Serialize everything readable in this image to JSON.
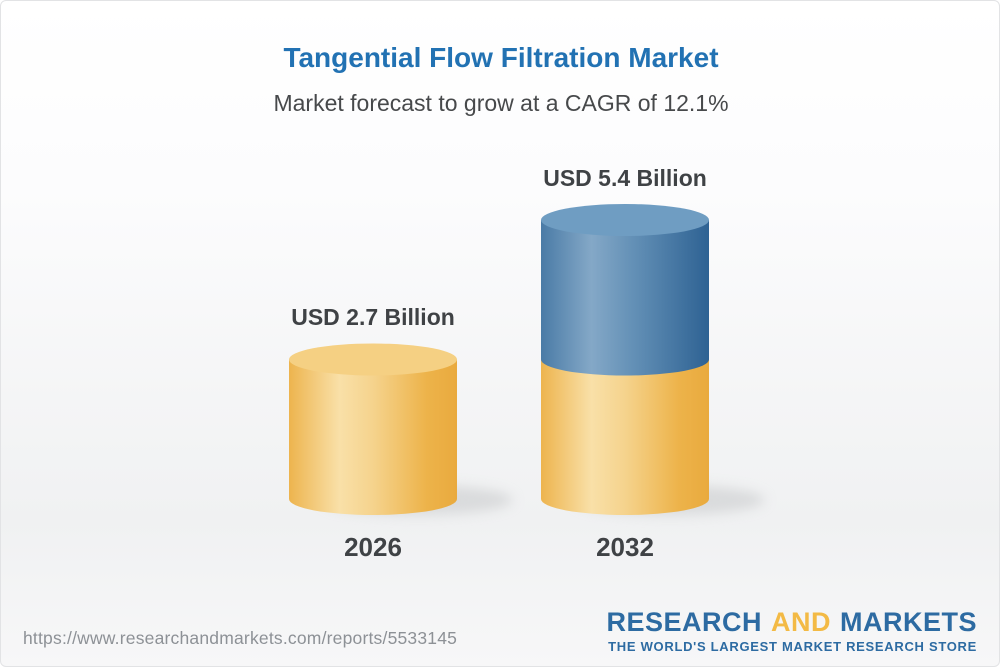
{
  "header": {
    "title": "Tangential Flow Filtration Market",
    "subtitle": "Market forecast to grow at a CAGR of 12.1%"
  },
  "chart_data": {
    "type": "bar",
    "style": "3d-stacked-cylinder",
    "title": "Tangential Flow Filtration Market",
    "annotation": "Market forecast to grow at a CAGR of 12.1%",
    "cagr_percent": 12.1,
    "unit": "USD Billion",
    "categories": [
      "2026",
      "2032"
    ],
    "series": [
      {
        "name": "market-size-base",
        "color_key": "gold",
        "values": [
          2.7,
          2.7
        ]
      },
      {
        "name": "forecast-growth",
        "color_key": "blue",
        "values": [
          0,
          2.7
        ]
      }
    ],
    "totals": [
      2.7,
      5.4
    ],
    "bar_labels": [
      "USD 2.7 Billion",
      "USD 5.4 Billion"
    ],
    "ylim": [
      0,
      5.4
    ],
    "legend": "none",
    "grid": "off"
  },
  "colors": {
    "title_blue": "#2272b3",
    "text_dark": "#3f4245",
    "cylinder_gold": "#f0bc55",
    "cylinder_gold_top": "#f5d083",
    "cylinder_blue": "#41729f",
    "cylinder_blue_top": "#6f9dc2",
    "logo_blue": "#2d6ba2",
    "logo_gold": "#f3ba45",
    "url_gray": "#8d9196"
  },
  "footer": {
    "url": "https://www.researchandmarkets.com/reports/5533145",
    "logo": {
      "word1": "RESEARCH",
      "word2": "AND",
      "word3": "MARKETS",
      "tagline": "THE WORLD'S LARGEST MARKET RESEARCH STORE"
    }
  }
}
